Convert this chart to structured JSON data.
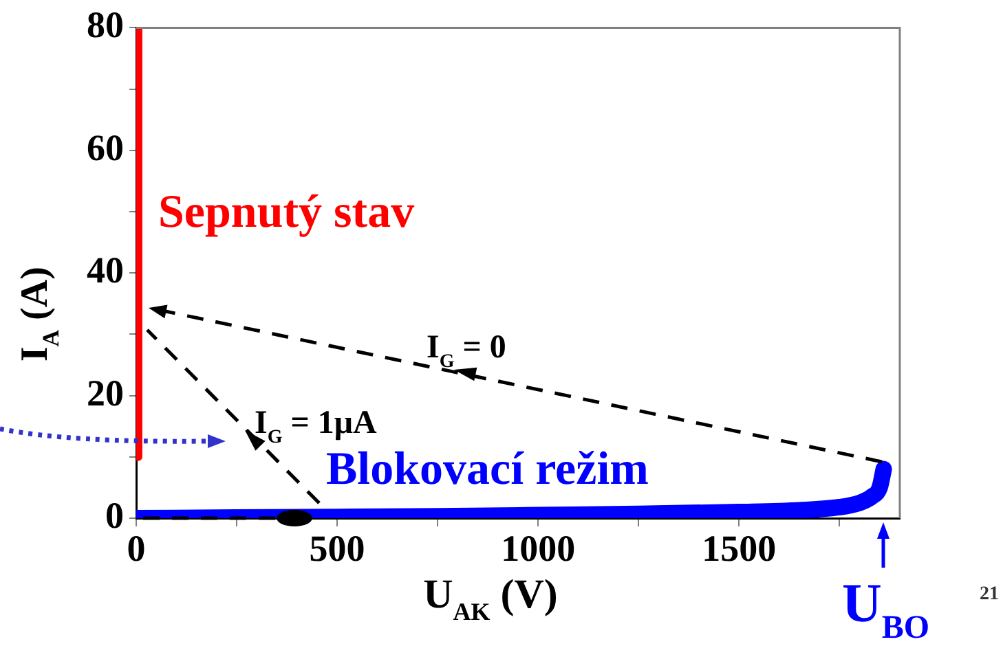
{
  "chart_data": {
    "type": "line",
    "xlabel": "U$_{AK}$ (V)",
    "ylabel": "I$_{A}$ (A)",
    "xlim": [
      0,
      1900
    ],
    "xticks": [
      0,
      {
        "value": 250,
        "label": null
      },
      500,
      {
        "value": 750,
        "label": null
      },
      1000,
      {
        "value": 1250,
        "label": null
      },
      1500,
      {
        "value": 1750,
        "label": null
      }
    ],
    "ylim": [
      0,
      80
    ],
    "yticks": [
      0,
      {
        "value": 10,
        "label": null
      },
      20,
      {
        "value": 30,
        "label": null
      },
      40,
      {
        "value": 50,
        "label": null
      },
      60,
      {
        "value": 70,
        "label": null
      },
      80
    ],
    "grid": false,
    "legend": false,
    "marker": "none",
    "series": [
      {
        "name": "Sepnutý stav",
        "color": "#ff0000",
        "line_style": "solid",
        "x": [
          5,
          5
        ],
        "values": [
          10,
          80
        ]
      },
      {
        "name": "Blokovací režim",
        "color": "#0000ff",
        "line_style": "solid",
        "x": [
          0,
          250,
          500,
          750,
          1000,
          1250,
          1500,
          1650,
          1750,
          1800,
          1830,
          1850,
          1860
        ],
        "values": [
          0,
          0.1,
          0.2,
          0.3,
          0.5,
          0.7,
          1,
          1.3,
          1.8,
          2.5,
          3.5,
          5,
          8
        ]
      }
    ],
    "annotations": [
      "I$_{G}$ = 0",
      "I$_{G}$ = 1μA",
      "U$_{BO}$",
      "21"
    ]
  }
}
